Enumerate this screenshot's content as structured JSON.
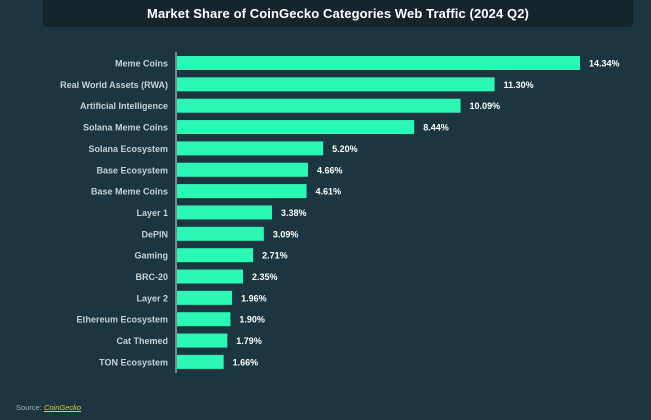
{
  "title": "Market Share of CoinGecko Categories Web Traffic (2024 Q2)",
  "source": {
    "label": "Source:",
    "link_text": "CoinGecko"
  },
  "colors": {
    "background": "#1b3640",
    "title_bar": "#16242b",
    "bar": "#2bf8b5",
    "axis": "#d9e2e5",
    "category_text": "#c5d1d5",
    "value_text": "#ffffff",
    "source_link": "#f0c43a"
  },
  "chart_data": {
    "type": "bar",
    "orientation": "horizontal",
    "title": "Market Share of CoinGecko Categories Web Traffic (2024 Q2)",
    "categories": [
      "Meme Coins",
      "Real World Assets (RWA)",
      "Artificial Intelligence",
      "Solana Meme Coins",
      "Solana Ecosystem",
      "Base Ecosystem",
      "Base Meme Coins",
      "Layer 1",
      "DePIN",
      "Gaming",
      "BRC-20",
      "Layer 2",
      "Ethereum Ecosystem",
      "Cat Themed",
      "TON Ecosystem"
    ],
    "values": [
      14.34,
      11.3,
      10.09,
      8.44,
      5.2,
      4.66,
      4.61,
      3.38,
      3.09,
      2.71,
      2.35,
      1.96,
      1.9,
      1.79,
      1.66
    ],
    "value_labels": [
      "14.34%",
      "11.30%",
      "10.09%",
      "8.44%",
      "5.20%",
      "4.66%",
      "4.61%",
      "3.38%",
      "3.09%",
      "2.71%",
      "2.35%",
      "1.96%",
      "1.90%",
      "1.79%",
      "1.66%"
    ],
    "xlim": [
      0,
      14.34
    ],
    "grid": false,
    "legend": "none"
  }
}
